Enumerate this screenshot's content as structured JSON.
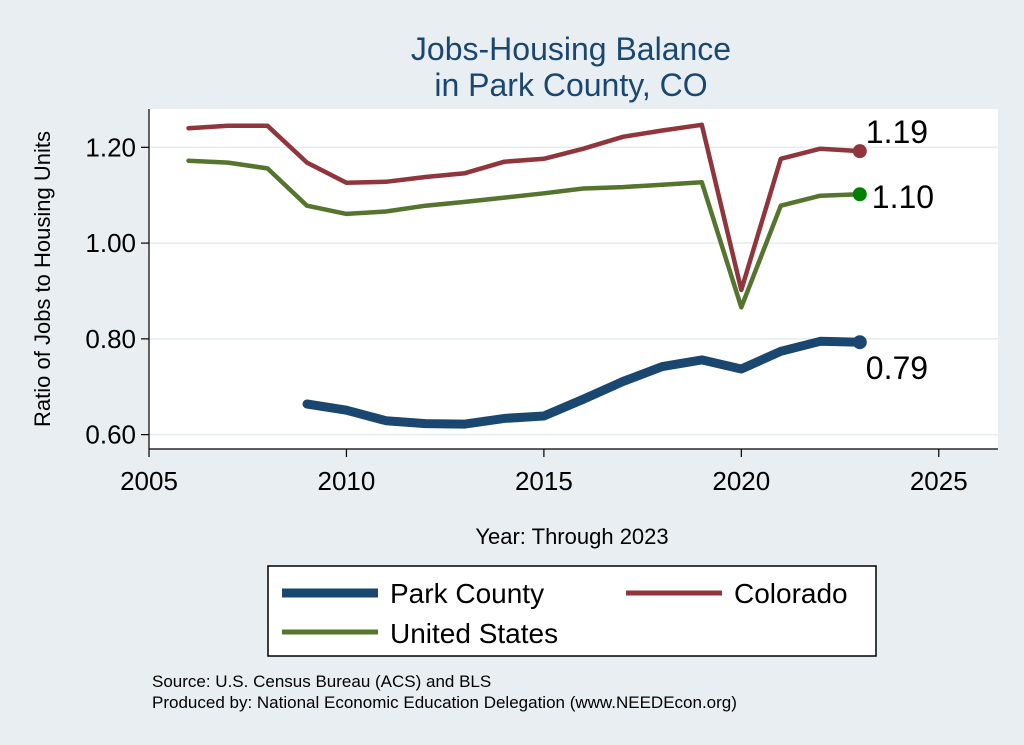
{
  "chart_data": {
    "type": "line",
    "title": [
      "Jobs-Housing Balance",
      "in Park County, CO"
    ],
    "xlabel": "Year: Through 2023",
    "ylabel": "Ratio of Jobs to Housing Units",
    "xlim": [
      2005,
      2026.5
    ],
    "ylim": [
      0.57,
      1.28
    ],
    "xticks": [
      2005,
      2010,
      2015,
      2020,
      2025
    ],
    "yticks": [
      0.6,
      0.8,
      1.0,
      1.2
    ],
    "ytick_labels": [
      "0.60",
      "0.80",
      "1.00",
      "1.20"
    ],
    "grid": true,
    "series": [
      {
        "name": "Park County",
        "color": "#1a476f",
        "x": [
          2009,
          2010,
          2011,
          2012,
          2013,
          2014,
          2015,
          2016,
          2017,
          2018,
          2019,
          2020,
          2021,
          2022,
          2023
        ],
        "values": [
          0.664,
          0.651,
          0.629,
          0.623,
          0.622,
          0.634,
          0.639,
          0.674,
          0.711,
          0.742,
          0.756,
          0.737,
          0.774,
          0.795,
          0.793
        ],
        "end_label": "0.79"
      },
      {
        "name": "Colorado",
        "color": "#90353b",
        "x": [
          2006,
          2007,
          2008,
          2009,
          2010,
          2011,
          2012,
          2013,
          2014,
          2015,
          2016,
          2017,
          2018,
          2019,
          2020,
          2021,
          2022,
          2023
        ],
        "values": [
          1.24,
          1.245,
          1.245,
          1.168,
          1.126,
          1.128,
          1.138,
          1.146,
          1.17,
          1.176,
          1.197,
          1.222,
          1.235,
          1.247,
          0.902,
          1.176,
          1.197,
          1.192
        ],
        "end_label": "1.19"
      },
      {
        "name": "United States",
        "color": "#55752f",
        "x": [
          2006,
          2007,
          2008,
          2009,
          2010,
          2011,
          2012,
          2013,
          2014,
          2015,
          2016,
          2017,
          2018,
          2019,
          2020,
          2021,
          2022,
          2023
        ],
        "values": [
          1.172,
          1.168,
          1.156,
          1.078,
          1.061,
          1.066,
          1.078,
          1.086,
          1.095,
          1.104,
          1.114,
          1.117,
          1.122,
          1.127,
          0.866,
          1.078,
          1.099,
          1.102
        ],
        "end_label": "1.10",
        "marker_color": "#008000"
      }
    ],
    "legend": [
      "Park County",
      "Colorado",
      "United States"
    ],
    "legend_position": "bottom"
  },
  "footer": {
    "source_line1": "Source: U.S. Census Bureau (ACS) and BLS",
    "source_line2": "Produced by: National Economic Education Delegation (www.NEEDEcon.org)"
  }
}
